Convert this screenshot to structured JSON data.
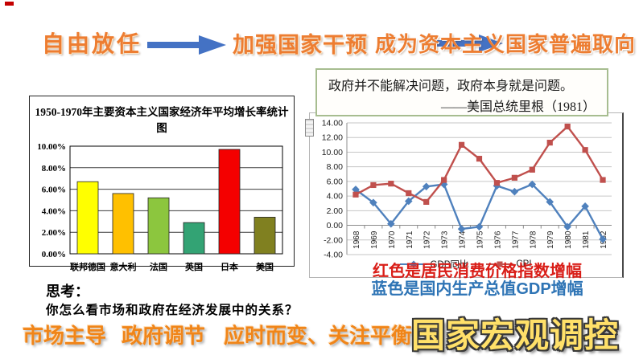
{
  "header": {
    "laissez_faire": "自由放任",
    "strengthen": "加强国家干预",
    "trend": "成为资本主义国家普遍取向"
  },
  "quote": {
    "text": "政府并不能解决问题，政府本身就是问题。",
    "attribution": "——美国总统里根（1981）"
  },
  "captions": {
    "red": "红色是居民消费价格指数增幅",
    "blue": "蓝色是国内生产总值GDP增幅"
  },
  "think": {
    "label": "思考：",
    "question": "你怎么看市场和政府在经济发展中的关系？"
  },
  "footer": {
    "items": [
      "市场主导",
      "政府调节",
      "应时而变、关注平衡"
    ],
    "wordart": "国家宏观调控"
  },
  "colors": {
    "wordart_orange": "#ED7D31",
    "arrow_blue": "#4472C4",
    "caption_red": "#D91E18",
    "caption_blue": "#2E74B5",
    "wordart_gold": "#FFE069"
  },
  "chart_data": [
    {
      "type": "bar",
      "title": "1950-1970年主要资本主义国家经济年平均增长率统计图",
      "categories": [
        "联邦德国",
        "意大利",
        "法国",
        "英国",
        "日本",
        "美国"
      ],
      "values": [
        6.7,
        5.6,
        5.2,
        2.9,
        9.7,
        3.4
      ],
      "bar_colors": [
        "#FFFF00",
        "#FFC000",
        "#8CC63E",
        "#33A374",
        "#F40000",
        "#808020"
      ],
      "yticks": [
        "0.00%",
        "2.00%",
        "4.00%",
        "6.00%",
        "8.00%",
        "10.00%"
      ],
      "ylim": [
        0,
        10
      ],
      "ytick_step": 2,
      "xlabel": "",
      "ylabel": "",
      "grid": true,
      "legend_position": "none"
    },
    {
      "type": "line",
      "x": [
        1968,
        1969,
        1970,
        1971,
        1972,
        1973,
        1974,
        1975,
        1976,
        1977,
        1978,
        1979,
        1980,
        1981,
        1982
      ],
      "series": [
        {
          "name": "GDP同比",
          "color": "#4F81BD",
          "marker": "diamond",
          "values": [
            4.9,
            3.1,
            0.2,
            3.3,
            5.3,
            5.6,
            -0.5,
            -0.2,
            5.4,
            4.6,
            5.6,
            3.2,
            -0.2,
            2.6,
            -1.9
          ]
        },
        {
          "name": "CPI",
          "color": "#C0504D",
          "marker": "square",
          "values": [
            4.2,
            5.5,
            5.7,
            4.4,
            3.2,
            6.2,
            11.0,
            9.1,
            5.8,
            6.5,
            7.6,
            11.3,
            13.5,
            10.3,
            6.2
          ]
        }
      ],
      "yticks": [
        "-4.00",
        "-2.00",
        "0.00",
        "2.00",
        "4.00",
        "6.00",
        "8.00",
        "10.00",
        "12.00",
        "14.00"
      ],
      "ylim": [
        -4,
        14
      ],
      "ytick_step": 2,
      "grid": true,
      "legend_position": "bottom"
    }
  ]
}
